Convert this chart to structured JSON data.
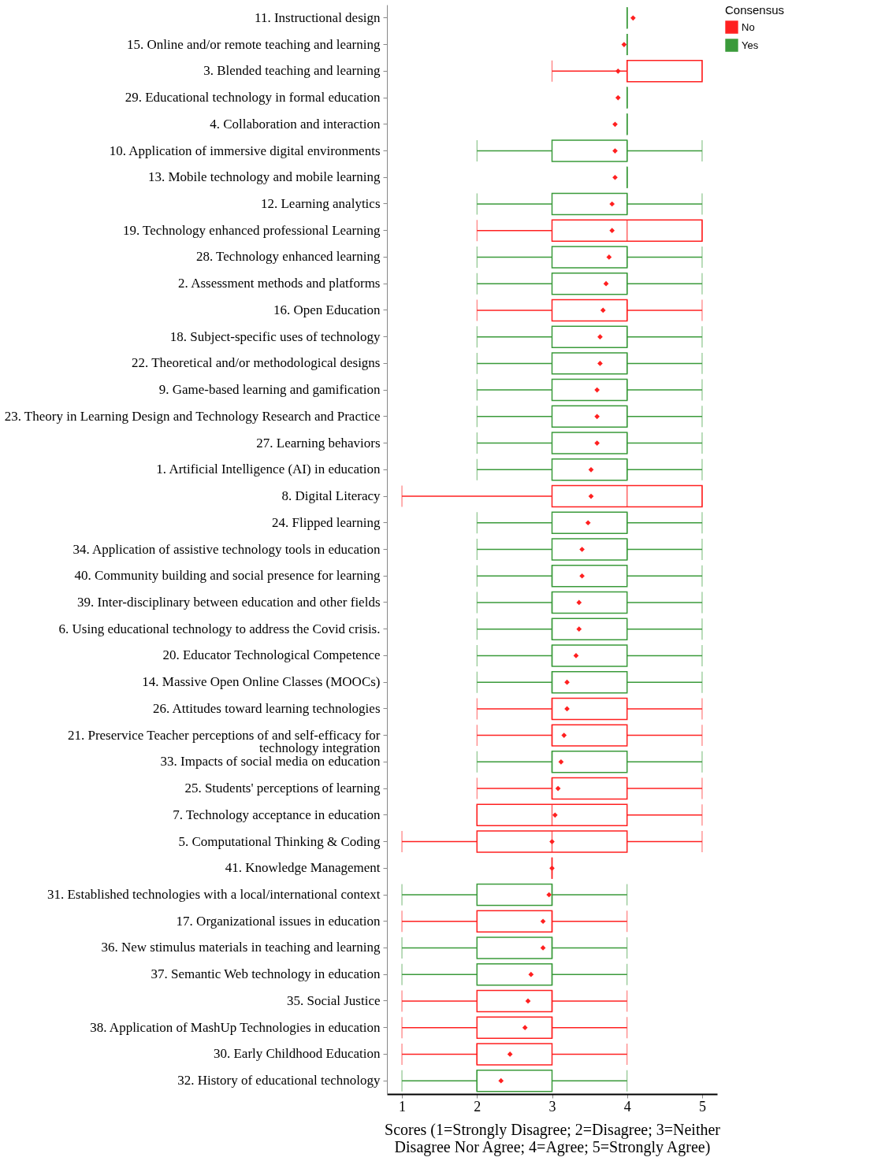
{
  "chart_data": {
    "type": "box",
    "orientation": "horizontal",
    "xlabel": "Scores (1=Strongly Disagree; 2=Disagree; 3=Neither Disagree Nor Agree; 4=Agree; 5=Strongly Agree)",
    "legend_title": "Consensus",
    "legend": "right",
    "xlim": [
      0.8,
      5.2
    ],
    "xticks": [
      1,
      2,
      3,
      4,
      5
    ],
    "categories": [
      "11. Instructional design",
      "15. Online and/or remote teaching and learning",
      "3. Blended teaching and learning",
      "29. Educational technology in formal education",
      "4. Collaboration and interaction",
      "10. Application of immersive digital environments",
      "13. Mobile technology and mobile learning",
      "12. Learning analytics",
      "19. Technology enhanced professional Learning",
      "28. Technology enhanced learning",
      "2. Assessment methods and platforms",
      "16. Open Education",
      "18. Subject-specific uses of technology",
      "22. Theoretical and/or methodological designs",
      "9. Game-based learning and gamification",
      "23. Theory in Learning Design and Technology Research and Practice",
      "27. Learning behaviors",
      "1. Artificial Intelligence (AI) in education",
      "8. Digital Literacy",
      "24. Flipped learning",
      "34. Application of assistive technology tools in education",
      "40. Community building and social presence for learning",
      "39. Inter-disciplinary between education and other fields",
      "6. Using educational technology to address the Covid crisis.",
      "20. Educator Technological Competence",
      "14. Massive Open Online Classes (MOOCs)",
      "26. Attitudes toward learning technologies",
      "21. Preservice Teacher perceptions of and self-efficacy for technology integration",
      "33. Impacts of social media on education",
      "25. Students' perceptions of learning",
      "7. Technology acceptance in education",
      "5. Computational Thinking & Coding",
      "41. Knowledge Management",
      "31. Established technologies with a local/international context",
      "17. Organizational issues in education",
      "36. New stimulus materials in teaching and learning",
      "37. Semantic Web technology in education",
      "35. Social Justice",
      "38. Application of MashUp Technologies in education",
      "30. Early Childhood Education",
      "32. History of educational technology"
    ],
    "series": [
      {
        "name": "No",
        "color": "#ff2020",
        "boxes": [
          null,
          null,
          {
            "low": 3,
            "q1": 4,
            "median": 4,
            "q3": 5,
            "high": 5,
            "mean": 3.88
          },
          null,
          null,
          null,
          null,
          null,
          {
            "low": 2,
            "q1": 3,
            "median": 4,
            "q3": 5,
            "high": 5,
            "mean": 3.8
          },
          null,
          null,
          {
            "low": 2,
            "q1": 3,
            "median": 4,
            "q3": 4,
            "high": 5,
            "mean": 3.68
          },
          null,
          null,
          null,
          null,
          null,
          null,
          {
            "low": 1,
            "q1": 3,
            "median": 4,
            "q3": 5,
            "high": 5,
            "mean": 3.52
          },
          null,
          null,
          null,
          null,
          null,
          null,
          null,
          {
            "low": 2,
            "q1": 3,
            "median": 3,
            "q3": 4,
            "high": 5,
            "mean": 3.2
          },
          {
            "low": 2,
            "q1": 3,
            "median": 3,
            "q3": 4,
            "high": 5,
            "mean": 3.16
          },
          null,
          {
            "low": 2,
            "q1": 3,
            "median": 3,
            "q3": 4,
            "high": 5,
            "mean": 3.08
          },
          {
            "low": 2,
            "q1": 2,
            "median": 3,
            "q3": 4,
            "high": 5,
            "mean": 3.04
          },
          {
            "low": 1,
            "q1": 2,
            "median": 3,
            "q3": 4,
            "high": 5,
            "mean": 3.0
          },
          {
            "low": 3,
            "q1": 3,
            "median": 3,
            "q3": 3,
            "high": 3,
            "mean": 3.0
          },
          null,
          {
            "low": 1,
            "q1": 2,
            "median": 3,
            "q3": 3,
            "high": 4,
            "mean": 2.88
          },
          null,
          null,
          {
            "low": 1,
            "q1": 2,
            "median": 3,
            "q3": 3,
            "high": 4,
            "mean": 2.68
          },
          {
            "low": 1,
            "q1": 2,
            "median": 3,
            "q3": 3,
            "high": 4,
            "mean": 2.64
          },
          {
            "low": 1,
            "q1": 2,
            "median": 2,
            "q3": 3,
            "high": 4,
            "mean": 2.44
          },
          null
        ]
      },
      {
        "name": "Yes",
        "color": "#3a9a3a",
        "boxes": [
          {
            "low": 4,
            "q1": 4,
            "median": 4,
            "q3": 4,
            "high": 4,
            "mean": 4.08
          },
          {
            "low": 4,
            "q1": 4,
            "median": 4,
            "q3": 4,
            "high": 4,
            "mean": 3.96
          },
          null,
          {
            "low": 4,
            "q1": 4,
            "median": 4,
            "q3": 4,
            "high": 4,
            "mean": 3.88
          },
          {
            "low": 4,
            "q1": 4,
            "median": 4,
            "q3": 4,
            "high": 4,
            "mean": 3.84
          },
          {
            "low": 2,
            "q1": 3,
            "median": 4,
            "q3": 4,
            "high": 5,
            "mean": 3.84
          },
          {
            "low": 4,
            "q1": 4,
            "median": 4,
            "q3": 4,
            "high": 4,
            "mean": 3.84
          },
          {
            "low": 2,
            "q1": 3,
            "median": 4,
            "q3": 4,
            "high": 5,
            "mean": 3.8
          },
          null,
          {
            "low": 2,
            "q1": 3,
            "median": 4,
            "q3": 4,
            "high": 5,
            "mean": 3.76
          },
          {
            "low": 2,
            "q1": 3,
            "median": 4,
            "q3": 4,
            "high": 5,
            "mean": 3.72
          },
          null,
          {
            "low": 2,
            "q1": 3,
            "median": 4,
            "q3": 4,
            "high": 5,
            "mean": 3.64
          },
          {
            "low": 2,
            "q1": 3,
            "median": 4,
            "q3": 4,
            "high": 5,
            "mean": 3.64
          },
          {
            "low": 2,
            "q1": 3,
            "median": 4,
            "q3": 4,
            "high": 5,
            "mean": 3.6
          },
          {
            "low": 2,
            "q1": 3,
            "median": 4,
            "q3": 4,
            "high": 5,
            "mean": 3.6
          },
          {
            "low": 2,
            "q1": 3,
            "median": 4,
            "q3": 4,
            "high": 5,
            "mean": 3.6
          },
          {
            "low": 2,
            "q1": 3,
            "median": 4,
            "q3": 4,
            "high": 5,
            "mean": 3.52
          },
          null,
          {
            "low": 2,
            "q1": 3,
            "median": 4,
            "q3": 4,
            "high": 5,
            "mean": 3.48
          },
          {
            "low": 2,
            "q1": 3,
            "median": 4,
            "q3": 4,
            "high": 5,
            "mean": 3.4
          },
          {
            "low": 2,
            "q1": 3,
            "median": 3,
            "q3": 4,
            "high": 5,
            "mean": 3.4
          },
          {
            "low": 2,
            "q1": 3,
            "median": 3,
            "q3": 4,
            "high": 5,
            "mean": 3.36
          },
          {
            "low": 2,
            "q1": 3,
            "median": 3,
            "q3": 4,
            "high": 5,
            "mean": 3.36
          },
          {
            "low": 2,
            "q1": 3,
            "median": 3,
            "q3": 4,
            "high": 5,
            "mean": 3.32
          },
          {
            "low": 2,
            "q1": 3,
            "median": 3,
            "q3": 4,
            "high": 5,
            "mean": 3.2
          },
          null,
          null,
          {
            "low": 2,
            "q1": 3,
            "median": 3,
            "q3": 4,
            "high": 5,
            "mean": 3.12
          },
          null,
          null,
          null,
          null,
          {
            "low": 1,
            "q1": 2,
            "median": 3,
            "q3": 3,
            "high": 4,
            "mean": 2.96
          },
          null,
          {
            "low": 1,
            "q1": 2,
            "median": 3,
            "q3": 3,
            "high": 4,
            "mean": 2.88
          },
          {
            "low": 1,
            "q1": 2,
            "median": 3,
            "q3": 3,
            "high": 4,
            "mean": 2.72
          },
          null,
          null,
          null,
          {
            "low": 1,
            "q1": 2,
            "median": 2,
            "q3": 3,
            "high": 4,
            "mean": 2.32
          }
        ]
      }
    ]
  }
}
